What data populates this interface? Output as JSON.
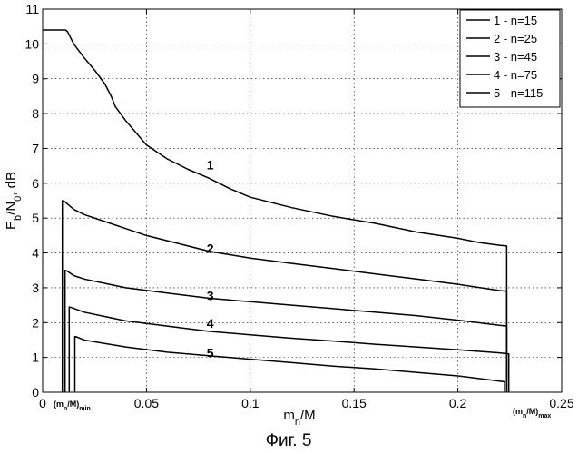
{
  "chart_data": {
    "type": "line",
    "xlabel": "m",
    "xlabel_sub": "n",
    "xlabel_rest": "/M",
    "ylabel": "E",
    "ylabel_sub1": "b",
    "ylabel_mid": "/N",
    "ylabel_sub2": "0",
    "ylabel_rest": ", dB",
    "caption": "Фиг. 5",
    "xlim": [
      0,
      0.25
    ],
    "ylim": [
      0,
      11
    ],
    "xticks": [
      "0",
      "0.05",
      "0.1",
      "0.15",
      "0.2",
      "0.25"
    ],
    "yticks": [
      "0",
      "1",
      "2",
      "3",
      "4",
      "5",
      "6",
      "7",
      "8",
      "9",
      "10",
      "11"
    ],
    "grid": true,
    "legend_position": "top-right",
    "x_annotations": {
      "min": {
        "main": "(m",
        "sub1": "n",
        "mid": "/M)",
        "sub2": "min"
      },
      "max": {
        "main": "(m",
        "sub1": "n",
        "mid": "/M)",
        "sub2": "max"
      }
    },
    "series": [
      {
        "name": "1 - n=15",
        "label": "1",
        "label_x": 0.079,
        "label_y": 6.4,
        "x": [
          0,
          0.011,
          0.012,
          0.015,
          0.02,
          0.025,
          0.03,
          0.033,
          0.035,
          0.04,
          0.05,
          0.06,
          0.07,
          0.08,
          0.09,
          0.1,
          0.12,
          0.14,
          0.16,
          0.18,
          0.2,
          0.21,
          0.22,
          0.2235,
          0.2235
        ],
        "y": [
          10.4,
          10.4,
          10.35,
          10.0,
          9.6,
          9.25,
          8.85,
          8.5,
          8.2,
          7.8,
          7.1,
          6.7,
          6.4,
          6.15,
          5.85,
          5.6,
          5.3,
          5.05,
          4.85,
          4.6,
          4.42,
          4.3,
          4.22,
          4.2,
          0
        ]
      },
      {
        "name": "2 - n=25",
        "label": "2",
        "label_x": 0.079,
        "label_y": 4.0,
        "x": [
          0.0095,
          0.0095,
          0.0105,
          0.015,
          0.02,
          0.03,
          0.04,
          0.05,
          0.06,
          0.08,
          0.1,
          0.12,
          0.14,
          0.16,
          0.18,
          0.2,
          0.22,
          0.2235,
          0.2235
        ],
        "y": [
          0,
          5.5,
          5.48,
          5.25,
          5.1,
          4.9,
          4.7,
          4.5,
          4.35,
          4.05,
          3.85,
          3.7,
          3.55,
          3.4,
          3.25,
          3.1,
          2.92,
          2.9,
          0
        ]
      },
      {
        "name": "3 - n=45",
        "label": "3",
        "label_x": 0.079,
        "label_y": 2.65,
        "x": [
          0.0108,
          0.0108,
          0.0118,
          0.015,
          0.02,
          0.04,
          0.06,
          0.08,
          0.1,
          0.12,
          0.14,
          0.16,
          0.18,
          0.2,
          0.22,
          0.2235,
          0.2235
        ],
        "y": [
          0,
          3.5,
          3.48,
          3.35,
          3.25,
          3.0,
          2.85,
          2.7,
          2.6,
          2.5,
          2.4,
          2.3,
          2.2,
          2.07,
          1.92,
          1.9,
          0
        ]
      },
      {
        "name": "4 - n=75",
        "label": "4",
        "label_x": 0.079,
        "label_y": 1.85,
        "x": [
          0.0128,
          0.0128,
          0.014,
          0.02,
          0.04,
          0.06,
          0.08,
          0.1,
          0.12,
          0.14,
          0.16,
          0.18,
          0.2,
          0.22,
          0.2245,
          0.2245
        ],
        "y": [
          0,
          2.45,
          2.43,
          2.3,
          2.05,
          1.9,
          1.75,
          1.65,
          1.55,
          1.47,
          1.38,
          1.3,
          1.22,
          1.13,
          1.1,
          0
        ]
      },
      {
        "name": "5 - n=115",
        "label": "5",
        "label_x": 0.079,
        "label_y": 1.0,
        "x": [
          0.0155,
          0.0155,
          0.0168,
          0.02,
          0.04,
          0.06,
          0.08,
          0.1,
          0.12,
          0.14,
          0.16,
          0.18,
          0.2,
          0.22,
          0.2225,
          0.2225
        ],
        "y": [
          0,
          1.6,
          1.58,
          1.5,
          1.3,
          1.15,
          1.05,
          0.95,
          0.85,
          0.75,
          0.67,
          0.57,
          0.47,
          0.32,
          0.3,
          0
        ]
      }
    ]
  }
}
